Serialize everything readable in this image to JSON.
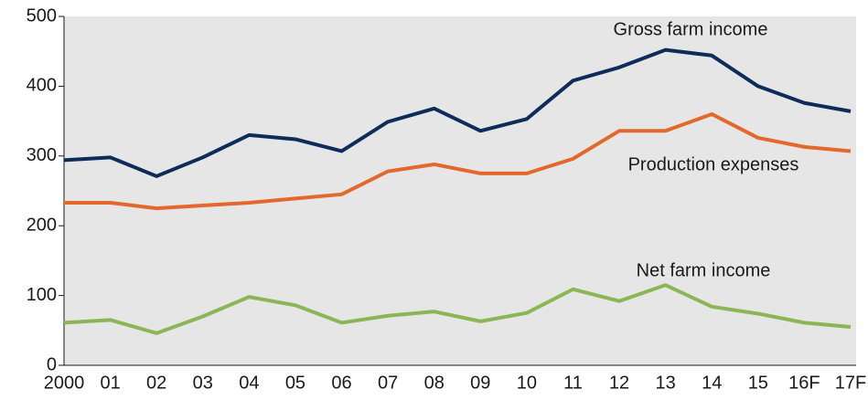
{
  "chart_data": {
    "type": "line",
    "categories": [
      "2000",
      "01",
      "02",
      "03",
      "04",
      "05",
      "06",
      "07",
      "08",
      "09",
      "10",
      "11",
      "12",
      "13",
      "14",
      "15",
      "16F",
      "17F"
    ],
    "series": [
      {
        "name": "Gross farm income",
        "color": "#0d2c5a",
        "values": [
          294,
          298,
          271,
          298,
          330,
          324,
          307,
          349,
          368,
          336,
          353,
          408,
          427,
          452,
          444,
          400,
          376,
          364
        ]
      },
      {
        "name": "Production expenses",
        "color": "#e2692b",
        "values": [
          233,
          233,
          225,
          229,
          233,
          239,
          245,
          278,
          288,
          275,
          275,
          296,
          336,
          336,
          360,
          326,
          313,
          307
        ]
      },
      {
        "name": "Net farm income",
        "color": "#8cb556",
        "values": [
          61,
          65,
          46,
          70,
          98,
          86,
          61,
          71,
          77,
          63,
          75,
          109,
          92,
          115,
          84,
          74,
          61,
          55
        ]
      }
    ],
    "ylim": [
      0,
      500
    ],
    "yticks": [
      0,
      100,
      200,
      300,
      400,
      500
    ]
  }
}
